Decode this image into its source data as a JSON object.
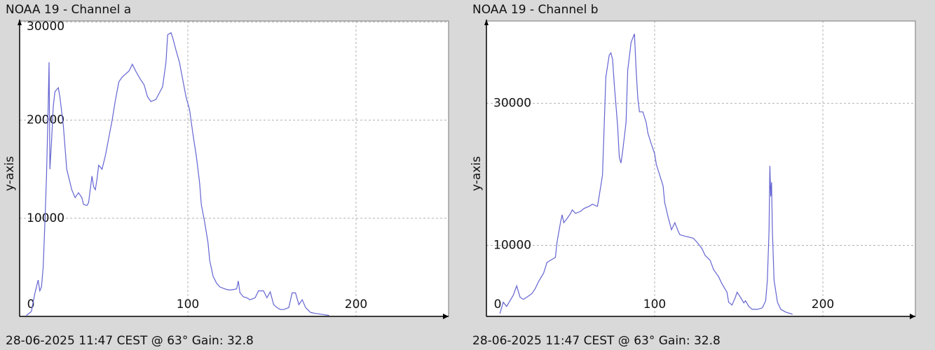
{
  "chart_data": [
    {
      "type": "line",
      "title": "NOAA 19 - Channel a",
      "ylabel": "y-axis",
      "footer": "28-06-2025 11:47 CEST @ 63° Gain: 32.8",
      "color": "#6464d2",
      "grid": true,
      "xlim": [
        0,
        255
      ],
      "xticks": [
        0,
        100,
        200
      ],
      "ylim": [
        0,
        30100
      ],
      "yticks": [
        0,
        10000,
        20000,
        30000
      ],
      "x": [
        4,
        7,
        9,
        11,
        12,
        13,
        14,
        15,
        16,
        17,
        17.5,
        18,
        19,
        20,
        21,
        23,
        24,
        26,
        28,
        30,
        31,
        33,
        35,
        37,
        38,
        40,
        41,
        43,
        44,
        45,
        46,
        47,
        49,
        51,
        53,
        55,
        57,
        59,
        61,
        63,
        65,
        67,
        69,
        72,
        74,
        76,
        78,
        81,
        85,
        87,
        88,
        90,
        91,
        93,
        95,
        97,
        99,
        101,
        103,
        105,
        107,
        108,
        110,
        112,
        113,
        115,
        117,
        119,
        122,
        124,
        126,
        129,
        130,
        131,
        133,
        135,
        137,
        140,
        142,
        145,
        147,
        149,
        151,
        153,
        155,
        157,
        160,
        162,
        164,
        166,
        168,
        170,
        173,
        176,
        180,
        184
      ],
      "values": [
        100,
        500,
        2300,
        3700,
        2600,
        3000,
        5000,
        9400,
        14400,
        21600,
        25900,
        15000,
        17900,
        21400,
        22900,
        23300,
        22300,
        19400,
        15000,
        13600,
        12900,
        12100,
        12600,
        12100,
        11400,
        11300,
        11600,
        14300,
        13200,
        12900,
        14000,
        15400,
        15000,
        16400,
        18200,
        20000,
        22100,
        23900,
        24400,
        24700,
        25000,
        25700,
        25000,
        24100,
        23600,
        22400,
        21900,
        22100,
        23400,
        25900,
        28700,
        28900,
        28400,
        27100,
        25900,
        24100,
        22300,
        21100,
        18600,
        16400,
        13600,
        11400,
        9600,
        7500,
        5700,
        4100,
        3400,
        3000,
        2800,
        2700,
        2700,
        2800,
        3600,
        2400,
        2000,
        1900,
        1700,
        1900,
        2600,
        2600,
        1900,
        2500,
        1200,
        900,
        700,
        700,
        900,
        2400,
        2400,
        1200,
        1700,
        900,
        400,
        300,
        200,
        100
      ]
    },
    {
      "type": "line",
      "title": "NOAA 19 - Channel b",
      "ylabel": "y-axis",
      "footer": "28-06-2025 11:47 CEST @ 63° Gain: 32.8",
      "color": "#6464d2",
      "grid": true,
      "xlim": [
        0,
        255
      ],
      "xticks": [
        0,
        100,
        200
      ],
      "ylim": [
        0,
        41600
      ],
      "yticks": [
        0,
        10000,
        30000
      ],
      "x": [
        8,
        10,
        12,
        14,
        16,
        18,
        20,
        22,
        24,
        27,
        29,
        31,
        34,
        36,
        38,
        41,
        42,
        44,
        45,
        46,
        48,
        50,
        51,
        53,
        56,
        58,
        61,
        63,
        66,
        67,
        69,
        70,
        71,
        73,
        74,
        75,
        76,
        78,
        79,
        80,
        81,
        83,
        84,
        85,
        86,
        88,
        89,
        90,
        91,
        93,
        95,
        96,
        98,
        100,
        101,
        103,
        105,
        106,
        108,
        110,
        112,
        114,
        115,
        118,
        120,
        123,
        125,
        128,
        130,
        133,
        135,
        138,
        140,
        143,
        144,
        146,
        148,
        149,
        151,
        153,
        154,
        156,
        158,
        161,
        164,
        166,
        167,
        168,
        168.5,
        169,
        169.5,
        170,
        171,
        173,
        175,
        178,
        182
      ],
      "values": [
        400,
        2000,
        1400,
        2200,
        3000,
        4300,
        2700,
        2400,
        2700,
        3200,
        3900,
        4900,
        6100,
        7600,
        7900,
        8300,
        10500,
        13200,
        14300,
        13200,
        13800,
        14500,
        15000,
        14500,
        14800,
        15200,
        15500,
        15800,
        15500,
        16900,
        19900,
        26800,
        33700,
        36800,
        37100,
        36200,
        32700,
        26800,
        22400,
        21600,
        23300,
        27300,
        34700,
        36600,
        38600,
        39800,
        34700,
        30700,
        28800,
        28800,
        27300,
        25800,
        24300,
        22900,
        21400,
        19900,
        18400,
        16000,
        14000,
        12200,
        13200,
        12000,
        11500,
        11300,
        11200,
        11000,
        10500,
        9600,
        8600,
        7900,
        6600,
        5600,
        4600,
        3400,
        2000,
        1600,
        2700,
        3400,
        2700,
        1900,
        2200,
        1400,
        1000,
        1000,
        1200,
        2200,
        5100,
        12000,
        21200,
        16900,
        18900,
        12000,
        5100,
        2000,
        1000,
        600,
        300
      ]
    }
  ]
}
